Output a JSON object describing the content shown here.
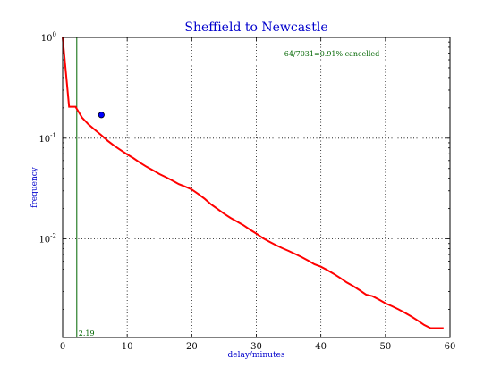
{
  "chart_data": {
    "type": "line",
    "title": "Sheffield to Newcastle",
    "xlabel": "delay/minutes",
    "ylabel": "frequency",
    "xlim": [
      0,
      60
    ],
    "ylim": [
      0.00105,
      1.0
    ],
    "yscale": "log",
    "grid": true,
    "x_ticks": [
      0,
      10,
      20,
      30,
      40,
      50,
      60
    ],
    "y_ticks": [
      {
        "base": "10",
        "exp": "0",
        "value": 1
      },
      {
        "base": "10",
        "exp": "-1",
        "value": 0.1
      },
      {
        "base": "10",
        "exp": "-2",
        "value": 0.01
      }
    ],
    "annotation": "64/7031=0.91% cancelled",
    "vline": {
      "x": 2.19,
      "label": "2.19",
      "color": "#006600"
    },
    "marker_point": {
      "x": 6,
      "y": 0.17,
      "color": "#0000ff"
    },
    "line_color": "#ff0000",
    "series": [
      {
        "x": [
          0,
          1,
          2,
          3,
          4,
          5,
          6,
          7,
          8,
          9,
          10,
          11,
          12,
          13,
          14,
          15,
          16,
          17,
          18,
          19,
          20,
          21,
          22,
          23,
          24,
          25,
          26,
          27,
          28,
          29,
          30,
          31,
          32,
          33,
          34,
          35,
          36,
          37,
          38,
          39,
          40,
          41,
          42,
          43,
          44,
          45,
          46,
          47,
          48,
          49,
          50,
          51,
          52,
          53,
          54,
          55,
          56,
          57,
          58,
          59
        ],
        "y": [
          1.0,
          0.205,
          0.205,
          0.16,
          0.137,
          0.121,
          0.107,
          0.094,
          0.084,
          0.076,
          0.069,
          0.063,
          0.057,
          0.052,
          0.048,
          0.044,
          0.041,
          0.038,
          0.035,
          0.033,
          0.031,
          0.028,
          0.025,
          0.022,
          0.0198,
          0.0178,
          0.0162,
          0.0149,
          0.0137,
          0.0124,
          0.0113,
          0.0102,
          0.0094,
          0.0087,
          0.0081,
          0.0076,
          0.0071,
          0.0066,
          0.0061,
          0.0056,
          0.0053,
          0.0049,
          0.0045,
          0.0041,
          0.0037,
          0.0034,
          0.0031,
          0.0028,
          0.0027,
          0.0025,
          0.0023,
          0.00215,
          0.002,
          0.00185,
          0.0017,
          0.00155,
          0.0014,
          0.0013,
          0.0013,
          0.0013
        ]
      }
    ]
  }
}
